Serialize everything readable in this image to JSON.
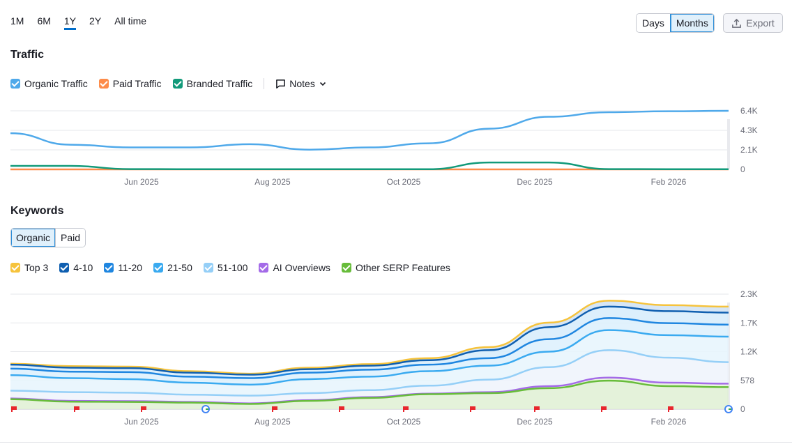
{
  "periods": [
    "1M",
    "6M",
    "1Y",
    "2Y",
    "All time"
  ],
  "active_period": "1Y",
  "granularity": {
    "days": "Days",
    "months": "Months",
    "selected": "Months"
  },
  "export_label": "Export",
  "traffic": {
    "title": "Traffic",
    "legend": [
      {
        "label": "Organic Traffic",
        "color": "#4fa9ea"
      },
      {
        "label": "Paid Traffic",
        "color": "#fd8c4a"
      },
      {
        "label": "Branded Traffic",
        "color": "#129a7a"
      }
    ],
    "notes_label": "Notes"
  },
  "keywords": {
    "title": "Keywords",
    "tabs": [
      "Organic",
      "Paid"
    ],
    "selected_tab": "Organic",
    "legend": [
      {
        "label": "Top 3",
        "color": "#f6c33c"
      },
      {
        "label": "4-10",
        "color": "#0f5fb0"
      },
      {
        "label": "11-20",
        "color": "#1f86e0"
      },
      {
        "label": "21-50",
        "color": "#3aaaf0"
      },
      {
        "label": "51-100",
        "color": "#95cff7"
      },
      {
        "label": "AI Overviews",
        "color": "#a46be8"
      },
      {
        "label": "Other SERP Features",
        "color": "#67bc3a"
      }
    ]
  },
  "chart_data": [
    {
      "type": "line",
      "title": "Traffic",
      "x": [
        "2025-03",
        "2025-04",
        "2025-05",
        "2025-06",
        "2025-07",
        "2025-08",
        "2025-09",
        "2025-10",
        "2025-11",
        "2025-12",
        "2026-01",
        "2026-02",
        "2026-03"
      ],
      "x_ticks": [
        "Jun 2025",
        "Aug 2025",
        "Oct 2025",
        "Dec 2025",
        "Feb 2026"
      ],
      "y_ticks": [
        "6.4K",
        "4.3K",
        "2.1K",
        "0"
      ],
      "ylim": [
        0,
        6400
      ],
      "series": [
        {
          "name": "Organic Traffic",
          "color": "#4fa9ea",
          "values": [
            3950,
            2700,
            2400,
            2400,
            2750,
            2150,
            2400,
            2850,
            4450,
            5750,
            6250,
            6350,
            6400
          ]
        },
        {
          "name": "Paid Traffic",
          "color": "#fd8c4a",
          "values": [
            0,
            0,
            0,
            0,
            0,
            0,
            0,
            0,
            0,
            0,
            0,
            0,
            0
          ]
        },
        {
          "name": "Branded Traffic",
          "color": "#129a7a",
          "values": [
            380,
            380,
            30,
            20,
            20,
            20,
            20,
            20,
            750,
            750,
            30,
            20,
            20
          ]
        }
      ]
    },
    {
      "type": "area",
      "title": "Keywords",
      "x": [
        "2025-03",
        "2025-04",
        "2025-05",
        "2025-06",
        "2025-07",
        "2025-08",
        "2025-09",
        "2025-10",
        "2025-11",
        "2025-12",
        "2026-01",
        "2026-02",
        "2026-03"
      ],
      "x_ticks": [
        "Jun 2025",
        "Aug 2025",
        "Oct 2025",
        "Dec 2025",
        "Feb 2026"
      ],
      "y_ticks": [
        "2.3K",
        "1.7K",
        "1.2K",
        "578",
        "0"
      ],
      "ylim": [
        0,
        2300
      ],
      "series": [
        {
          "name": "Top 3",
          "color": "#f6c33c",
          "values": [
            910,
            860,
            850,
            760,
            710,
            830,
            900,
            1020,
            1240,
            1730,
            2170,
            2080,
            2050
          ]
        },
        {
          "name": "4-10",
          "color": "#0f5fb0",
          "values": [
            890,
            830,
            820,
            730,
            690,
            800,
            870,
            980,
            1180,
            1640,
            2050,
            1960,
            1930
          ]
        },
        {
          "name": "11-20",
          "color": "#1f86e0",
          "values": [
            810,
            750,
            740,
            650,
            620,
            730,
            790,
            890,
            1020,
            1400,
            1820,
            1720,
            1690
          ]
        },
        {
          "name": "21-50",
          "color": "#3aaaf0",
          "values": [
            680,
            620,
            600,
            530,
            490,
            600,
            650,
            760,
            870,
            1150,
            1580,
            1480,
            1450
          ]
        },
        {
          "name": "51-100",
          "color": "#95cff7",
          "values": [
            370,
            340,
            330,
            290,
            270,
            320,
            380,
            470,
            590,
            840,
            1180,
            1030,
            940
          ]
        },
        {
          "name": "AI Overviews",
          "color": "#a46be8",
          "values": [
            215,
            165,
            160,
            145,
            115,
            180,
            240,
            310,
            340,
            460,
            630,
            530,
            510
          ]
        },
        {
          "name": "Other SERP Features",
          "color": "#67bc3a",
          "values": [
            200,
            150,
            145,
            130,
            105,
            165,
            225,
            300,
            320,
            420,
            570,
            460,
            440
          ]
        }
      ]
    }
  ]
}
